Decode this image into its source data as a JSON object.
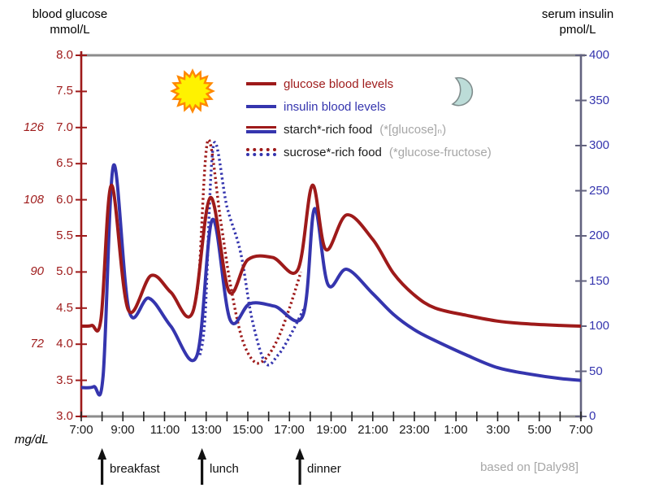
{
  "colors": {
    "glucose": "#9e1a1a",
    "insulin": "#3535ae",
    "frame_gray": "#8c8c8c",
    "right_axis": "#63637f",
    "x_tick": "#222222",
    "gray_text": "#a6a6a6",
    "sun_fill": "#fff200",
    "sun_stroke": "#ff8800",
    "moon_fill": "#bcdcd8",
    "moon_stroke": "#7f8c8c"
  },
  "left_axis": {
    "title1": "blood glucose",
    "title2": "mmol/L",
    "unit_note": "mg/dL",
    "ticks": [
      {
        "v": 8.0,
        "label": "8.0"
      },
      {
        "v": 7.5,
        "label": "7.5"
      },
      {
        "v": 7.0,
        "label": "7.0",
        "mgdl": "126"
      },
      {
        "v": 6.5,
        "label": "6.5"
      },
      {
        "v": 6.0,
        "label": "6.0",
        "mgdl": "108"
      },
      {
        "v": 5.5,
        "label": "5.5"
      },
      {
        "v": 5.0,
        "label": "5.0",
        "mgdl": "90"
      },
      {
        "v": 4.5,
        "label": "4.5"
      },
      {
        "v": 4.0,
        "label": "4.0",
        "mgdl": "72"
      },
      {
        "v": 3.5,
        "label": "3.5"
      },
      {
        "v": 3.0,
        "label": "3.0"
      }
    ]
  },
  "right_axis": {
    "title1": "serum insulin",
    "title2": "pmol/L",
    "ticks": [
      {
        "v": 400,
        "label": "400"
      },
      {
        "v": 350,
        "label": "350"
      },
      {
        "v": 300,
        "label": "300"
      },
      {
        "v": 250,
        "label": "250"
      },
      {
        "v": 200,
        "label": "200"
      },
      {
        "v": 150,
        "label": "150"
      },
      {
        "v": 100,
        "label": "100"
      },
      {
        "v": 50,
        "label": "50"
      },
      {
        "v": 0,
        "label": "0"
      }
    ]
  },
  "x_axis": {
    "labels": [
      {
        "h": 7,
        "label": "7:00"
      },
      {
        "h": 9,
        "label": "9:00"
      },
      {
        "h": 11,
        "label": "11:00"
      },
      {
        "h": 13,
        "label": "13:00"
      },
      {
        "h": 15,
        "label": "15:00"
      },
      {
        "h": 17,
        "label": "17:00"
      },
      {
        "h": 19,
        "label": "19:00"
      },
      {
        "h": 21,
        "label": "21:00"
      },
      {
        "h": 23,
        "label": "23:00"
      },
      {
        "h": 25,
        "label": "1:00"
      },
      {
        "h": 27,
        "label": "3:00"
      },
      {
        "h": 29,
        "label": "5:00"
      },
      {
        "h": 31,
        "label": "7:00"
      }
    ]
  },
  "legend": {
    "items": [
      {
        "swatch": "solid-red",
        "label": "glucose blood levels",
        "label_color": "#9e1a1a",
        "note": ""
      },
      {
        "swatch": "solid-blue",
        "label": "insulin blood levels",
        "label_color": "#3535ae",
        "note": ""
      },
      {
        "swatch": "double-solid",
        "label": "starch*-rich food",
        "label_color": "#1a1a1a",
        "note": "(*[glucose]ₙ)"
      },
      {
        "swatch": "double-dotted",
        "label": "sucrose*-rich food",
        "label_color": "#1a1a1a",
        "note": "(*glucose-fructose)"
      }
    ]
  },
  "icons": {
    "sun": "sun-icon",
    "moon": "moon-icon"
  },
  "meals": [
    {
      "label": "breakfast",
      "hour": 8.0
    },
    {
      "label": "lunch",
      "hour": 12.8
    },
    {
      "label": "dinner",
      "hour": 17.5
    }
  ],
  "credit": "based on [Daly98]",
  "chart_data": {
    "type": "line",
    "x_range_hours": [
      7,
      31
    ],
    "x_tick_interval_hours": 1,
    "left_y": {
      "label": "blood glucose mmol/L",
      "range": [
        3.0,
        8.0
      ]
    },
    "right_y": {
      "label": "serum insulin pmol/L",
      "range": [
        0,
        400
      ]
    },
    "legend_position": "top-center",
    "grid": false,
    "series": [
      {
        "id": "insulin-sucrose",
        "name": "insulin blood levels (sucrose*-rich food)",
        "axis": "insulin",
        "line": "dotted",
        "color": "#3535ae",
        "points": [
          [
            12.7,
            68
          ],
          [
            12.95,
            112
          ],
          [
            13.35,
            300
          ],
          [
            14.0,
            232
          ],
          [
            14.65,
            182
          ],
          [
            15.2,
            108
          ],
          [
            15.85,
            59
          ],
          [
            16.45,
            68
          ],
          [
            17.0,
            88
          ],
          [
            17.75,
            122
          ]
        ]
      },
      {
        "id": "glucose-sucrose",
        "name": "glucose blood levels (sucrose*-rich food)",
        "axis": "glucose",
        "line": "dotted",
        "color": "#9e1a1a",
        "points": [
          [
            12.35,
            4.44
          ],
          [
            12.65,
            4.95
          ],
          [
            13.08,
            6.82
          ],
          [
            13.7,
            5.7
          ],
          [
            14.15,
            4.85
          ],
          [
            14.7,
            4.1
          ],
          [
            15.3,
            3.76
          ],
          [
            15.85,
            3.8
          ],
          [
            16.45,
            4.08
          ],
          [
            17.0,
            4.5
          ],
          [
            17.55,
            5.0
          ]
        ]
      },
      {
        "id": "insulin-starch",
        "name": "insulin blood levels (starch*-rich food)",
        "axis": "insulin",
        "line": "solid",
        "color": "#3535ae",
        "points": [
          [
            7.0,
            32
          ],
          [
            7.6,
            33
          ],
          [
            8.05,
            45
          ],
          [
            8.55,
            278
          ],
          [
            9.3,
            117
          ],
          [
            10.25,
            131
          ],
          [
            11.3,
            100
          ],
          [
            12.55,
            67
          ],
          [
            13.3,
            218
          ],
          [
            14.15,
            107
          ],
          [
            15.1,
            125
          ],
          [
            16.3,
            122
          ],
          [
            17.65,
            112
          ],
          [
            18.2,
            230
          ],
          [
            18.85,
            146
          ],
          [
            19.75,
            163
          ],
          [
            21.0,
            136
          ],
          [
            22.0,
            113
          ],
          [
            23.0,
            96
          ],
          [
            24.0,
            84
          ],
          [
            25.5,
            68
          ],
          [
            27.0,
            54
          ],
          [
            28.5,
            47
          ],
          [
            30.0,
            42
          ],
          [
            31.0,
            40
          ]
        ]
      },
      {
        "id": "glucose-starch",
        "name": "glucose blood levels (starch*-rich food)",
        "axis": "glucose",
        "line": "solid",
        "color": "#9e1a1a",
        "points": [
          [
            7.0,
            4.25
          ],
          [
            7.5,
            4.26
          ],
          [
            7.95,
            4.35
          ],
          [
            8.45,
            6.2
          ],
          [
            9.25,
            4.48
          ],
          [
            10.35,
            4.95
          ],
          [
            11.3,
            4.72
          ],
          [
            12.35,
            4.44
          ],
          [
            13.2,
            6.03
          ],
          [
            14.1,
            4.73
          ],
          [
            15.0,
            5.17
          ],
          [
            16.2,
            5.2
          ],
          [
            17.4,
            5.03
          ],
          [
            18.1,
            6.2
          ],
          [
            18.75,
            5.31
          ],
          [
            19.75,
            5.79
          ],
          [
            21.0,
            5.45
          ],
          [
            22.0,
            4.98
          ],
          [
            23.0,
            4.68
          ],
          [
            24.0,
            4.5
          ],
          [
            25.5,
            4.4
          ],
          [
            27.0,
            4.32
          ],
          [
            28.5,
            4.28
          ],
          [
            30.0,
            4.26
          ],
          [
            31.0,
            4.25
          ]
        ]
      }
    ]
  }
}
